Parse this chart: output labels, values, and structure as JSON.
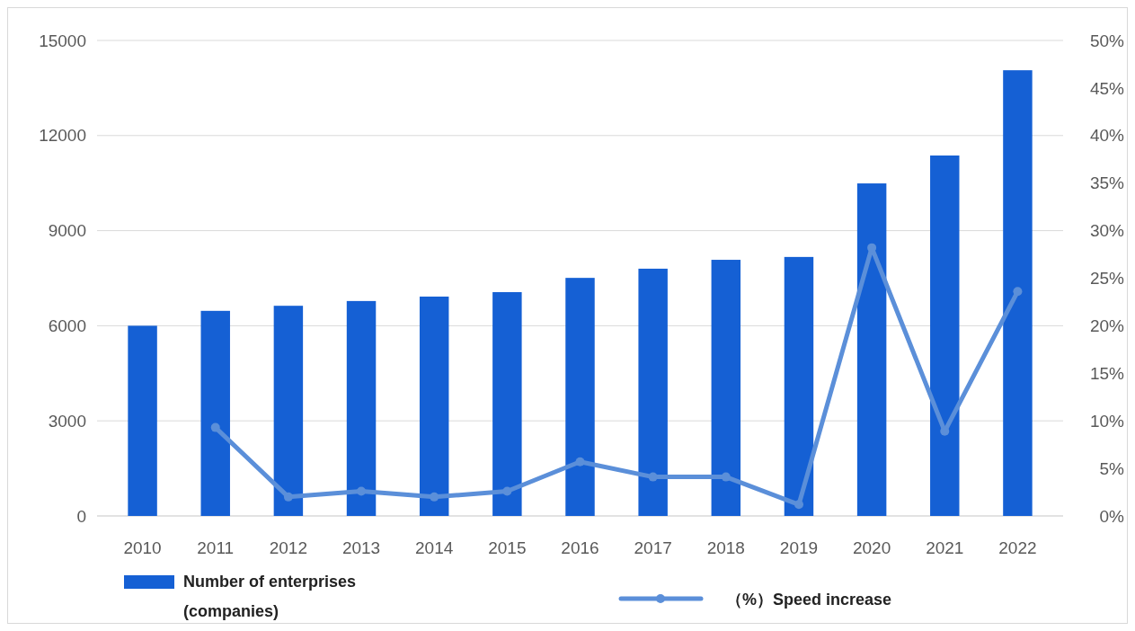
{
  "chart_data": {
    "type": "bar",
    "categories": [
      "2010",
      "2011",
      "2012",
      "2013",
      "2014",
      "2015",
      "2016",
      "2017",
      "2018",
      "2019",
      "2020",
      "2021",
      "2022"
    ],
    "series": [
      {
        "name": "Number of enterprises (companies)",
        "color": "#1560d4",
        "values": [
          6000,
          6470,
          6630,
          6780,
          6920,
          7060,
          7510,
          7800,
          8080,
          8170,
          10490,
          11370,
          14060
        ]
      },
      {
        "name": "（%）Speed increase",
        "type": "line",
        "axis": "y2",
        "color": "#5b8fd9",
        "marker": "circle",
        "values": [
          null,
          9.3,
          2.0,
          2.6,
          2.0,
          2.6,
          5.7,
          4.1,
          4.1,
          1.2,
          28.2,
          8.9,
          23.6
        ]
      }
    ],
    "ylim": [
      0,
      15000
    ],
    "yticks": [
      0,
      3000,
      6000,
      9000,
      12000,
      15000
    ],
    "y2lim": [
      0,
      50
    ],
    "y2ticks": [
      {
        "value": 0,
        "label": "0%"
      },
      {
        "value": 5,
        "label": "5%"
      },
      {
        "value": 10,
        "label": "10%"
      },
      {
        "value": 15,
        "label": "15%"
      },
      {
        "value": 20,
        "label": "20%"
      },
      {
        "value": 25,
        "label": "25%"
      },
      {
        "value": 30,
        "label": "30%"
      },
      {
        "value": 35,
        "label": "35%"
      },
      {
        "value": 40,
        "label": "40%"
      },
      {
        "value": 45,
        "label": "45%"
      },
      {
        "value": 50,
        "label": "50%"
      }
    ],
    "grid": "y",
    "legend": "bottom"
  }
}
